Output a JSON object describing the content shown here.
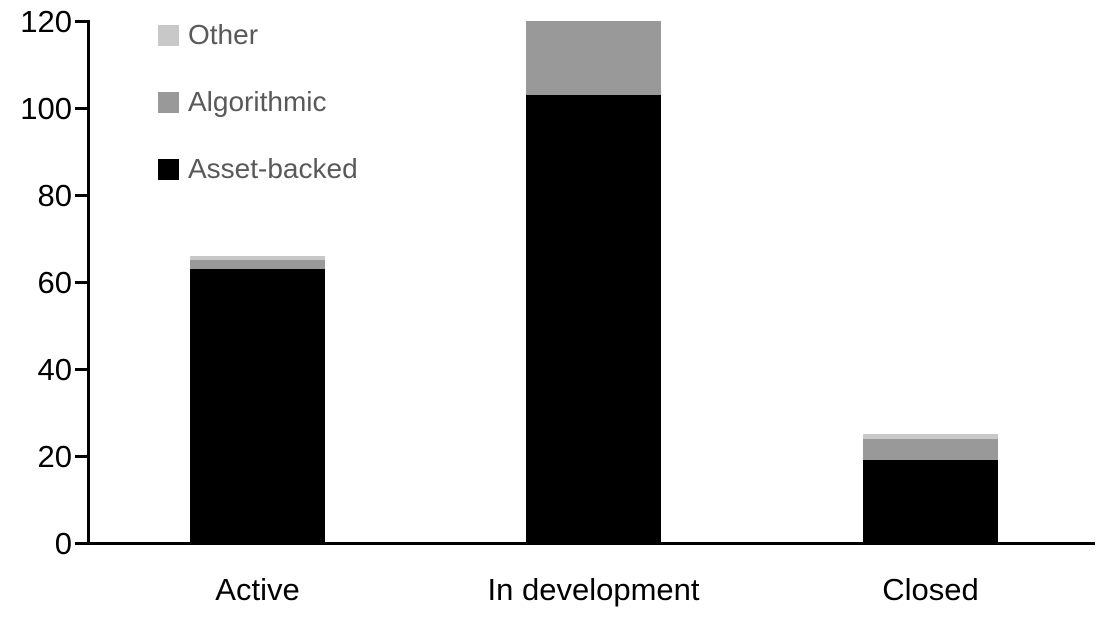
{
  "chart_data": {
    "type": "bar",
    "stacked": true,
    "title": "",
    "xlabel": "",
    "ylabel": "",
    "categories": [
      "Active",
      "In development",
      "Closed"
    ],
    "series": [
      {
        "name": "Asset-backed",
        "color": "#000000",
        "values": [
          63,
          103,
          19
        ]
      },
      {
        "name": "Algorithmic",
        "color": "#999999",
        "values": [
          2,
          17,
          5
        ]
      },
      {
        "name": "Other",
        "color": "#c8c8c8",
        "values": [
          1,
          0,
          1
        ]
      }
    ],
    "totals": [
      66,
      120,
      25
    ],
    "y_ticks": [
      0,
      20,
      40,
      60,
      80,
      100,
      120
    ],
    "ylim": [
      0,
      120
    ],
    "grid": "off",
    "legend_position": "top-left-inside",
    "legend_order": [
      "Other",
      "Algorithmic",
      "Asset-backed"
    ],
    "legend_text_color": "#595959",
    "axis_color": "#000000",
    "background_color": "#ffffff"
  }
}
